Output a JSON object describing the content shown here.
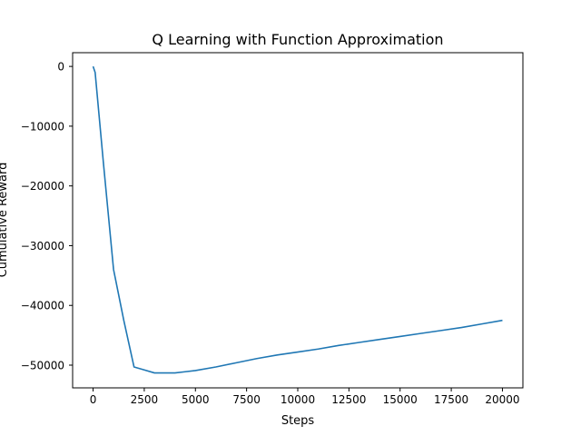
{
  "chart_data": {
    "type": "line",
    "title": "Q Learning with Function Approximation",
    "xlabel": "Steps",
    "ylabel": "Cumulative Reward",
    "xlim": [
      -1000,
      21000
    ],
    "ylim": [
      -53800,
      2300
    ],
    "xticks": [
      0,
      2500,
      5000,
      7500,
      10000,
      12500,
      15000,
      17500,
      20000
    ],
    "xtick_labels": [
      "0",
      "2500",
      "5000",
      "7500",
      "10000",
      "12500",
      "15000",
      "17500",
      "20000"
    ],
    "yticks": [
      0,
      -10000,
      -20000,
      -30000,
      -40000,
      -50000
    ],
    "ytick_labels": [
      "0",
      "−10000",
      "−20000",
      "−30000",
      "−40000",
      "−50000"
    ],
    "grid": false,
    "line_color": "#1f77b4",
    "series": [
      {
        "x": [
          0,
          100,
          500,
          1000,
          1500,
          2000,
          2500,
          3000,
          3500,
          4000,
          4500,
          5000,
          6000,
          7000,
          8000,
          9000,
          10000,
          11000,
          12000,
          13000,
          14000,
          15000,
          16000,
          17000,
          18000,
          19000,
          20000
        ],
        "y": [
          0,
          -1000,
          -16000,
          -34000,
          -42500,
          -50300,
          -50800,
          -51300,
          -51300,
          -51300,
          -51100,
          -50900,
          -50300,
          -49600,
          -48900,
          -48300,
          -47800,
          -47300,
          -46700,
          -46200,
          -45700,
          -45200,
          -44700,
          -44200,
          -43700,
          -43100,
          -42500
        ]
      }
    ]
  }
}
